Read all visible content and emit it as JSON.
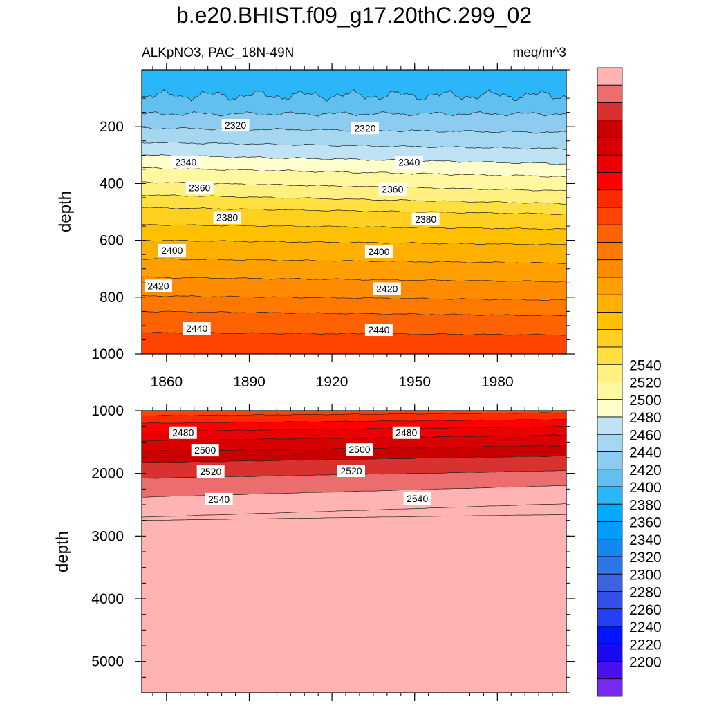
{
  "chart_data": {
    "type": "heatmap",
    "title": "b.e20.BHIST.f09_g17.20thC.299_02",
    "subtitle_left": "ALKpNO3, PAC_18N-49N",
    "subtitle_right": "meq/m^3",
    "xlabel": "",
    "ylabel": "depth",
    "x_ticks": [
      1860,
      1890,
      1920,
      1950,
      1980
    ],
    "xlim": [
      1851,
      2005
    ],
    "panels": [
      {
        "name": "upper",
        "ylim": [
          0,
          1000
        ],
        "y_ticks": [
          200,
          400,
          600,
          800,
          1000
        ],
        "contour_levels": [
          2300,
          2310,
          2320,
          2330,
          2340,
          2350,
          2360,
          2370,
          2380,
          2390,
          2400,
          2410,
          2420,
          2430,
          2440
        ],
        "contour_labels": [
          {
            "text": "2320",
            "x": 1885,
            "y": 195
          },
          {
            "text": "2320",
            "x": 1932,
            "y": 205
          },
          {
            "text": "2340",
            "x": 1867,
            "y": 325
          },
          {
            "text": "2340",
            "x": 1948,
            "y": 325
          },
          {
            "text": "2360",
            "x": 1872,
            "y": 415
          },
          {
            "text": "2360",
            "x": 1942,
            "y": 420
          },
          {
            "text": "2380",
            "x": 1882,
            "y": 520
          },
          {
            "text": "2380",
            "x": 1954,
            "y": 525
          },
          {
            "text": "2400",
            "x": 1862,
            "y": 635
          },
          {
            "text": "2400",
            "x": 1937,
            "y": 640
          },
          {
            "text": "2420",
            "x": 1857,
            "y": 760
          },
          {
            "text": "2420",
            "x": 1940,
            "y": 770
          },
          {
            "text": "2440",
            "x": 1871,
            "y": 910
          },
          {
            "text": "2440",
            "x": 1937,
            "y": 915
          }
        ]
      },
      {
        "name": "lower",
        "ylim": [
          1000,
          5500
        ],
        "y_ticks": [
          1000,
          2000,
          3000,
          4000,
          5000
        ],
        "contour_levels": [
          2460,
          2470,
          2480,
          2490,
          2500,
          2510,
          2520,
          2530,
          2540,
          2550
        ],
        "contour_labels": [
          {
            "text": "2480",
            "x": 1866,
            "y": 1350
          },
          {
            "text": "2480",
            "x": 1947,
            "y": 1350
          },
          {
            "text": "2500",
            "x": 1874,
            "y": 1630
          },
          {
            "text": "2500",
            "x": 1930,
            "y": 1620
          },
          {
            "text": "2520",
            "x": 1876,
            "y": 1970
          },
          {
            "text": "2520",
            "x": 1927,
            "y": 1960
          },
          {
            "text": "2540",
            "x": 1879,
            "y": 2410
          },
          {
            "text": "2540",
            "x": 1951,
            "y": 2400
          }
        ]
      }
    ],
    "colorbar": {
      "labels": [
        "2200",
        "2220",
        "2240",
        "2260",
        "2280",
        "2300",
        "2320",
        "2340",
        "2360",
        "2380",
        "2400",
        "2420",
        "2440",
        "2460",
        "2480",
        "2500",
        "2520",
        "2540"
      ],
      "colors_top_to_bottom": [
        "#ffb3b3",
        "#eb6d6d",
        "#d93030",
        "#c80000",
        "#d80000",
        "#ea0000",
        "#ff0000",
        "#ff2a00",
        "#ff4400",
        "#ff6200",
        "#ff7800",
        "#ff8c00",
        "#ffa000",
        "#ffb000",
        "#ffc000",
        "#ffd020",
        "#ffe040",
        "#fff080",
        "#fff8a0",
        "#ffffcc",
        "#bfe3f4",
        "#a5d8f0",
        "#8ecbf0",
        "#62c0f0",
        "#2ab6f8",
        "#00aaff",
        "#009cff",
        "#1588f0",
        "#2e75e6",
        "#3c63e0",
        "#3450e8",
        "#2440f2",
        "#0015ff",
        "#1a0af0",
        "#4b10f0",
        "#7a2af0"
      ]
    }
  }
}
